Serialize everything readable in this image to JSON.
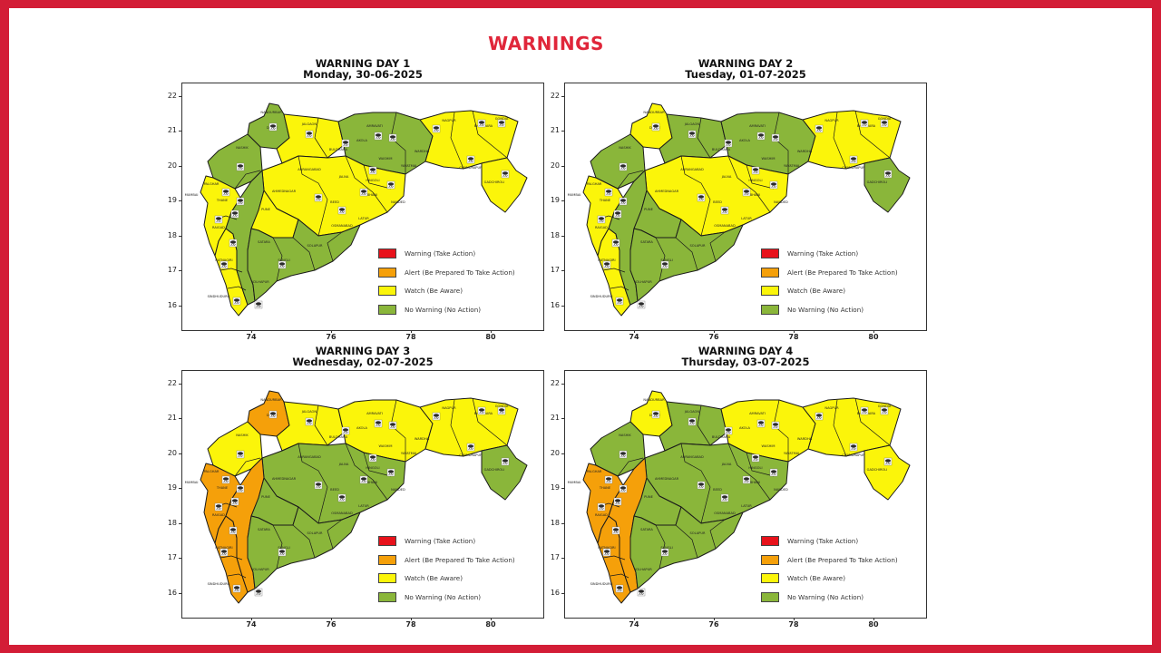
{
  "page": {
    "title": "WARNINGS"
  },
  "legend": [
    {
      "label": "Warning (Take Action)",
      "color": "#e8121b"
    },
    {
      "label": "Alert (Be Prepared To Take Action)",
      "color": "#f5a00a"
    },
    {
      "label": "Watch (Be Aware)",
      "color": "#fbf50a"
    },
    {
      "label": "No Warning (No Action)",
      "color": "#8ab63a"
    }
  ],
  "axes": {
    "y_ticks": [
      "22",
      "21",
      "20",
      "19",
      "18",
      "17",
      "16"
    ],
    "x_ticks": [
      "74",
      "76",
      "78",
      "80"
    ]
  },
  "panels": [
    {
      "title": "WARNING DAY 1",
      "date": "Monday, 30-06-2025",
      "regions": {
        "north_west": "green",
        "nashik": "green",
        "khandesh": "yellow",
        "marathwada": "yellow",
        "vidarbha_west": "green",
        "vidarbha_east": "yellow",
        "gadchiroli": "yellow",
        "coast_north": "yellow",
        "coast_south": "yellow",
        "ghats": "green",
        "south_central": "green",
        "pune": "yellow"
      }
    },
    {
      "title": "WARNING DAY 2",
      "date": "Tuesday, 01-07-2025",
      "regions": {
        "north_west": "yellow",
        "nashik": "green",
        "khandesh": "green",
        "marathwada": "yellow",
        "vidarbha_west": "green",
        "vidarbha_east": "yellow",
        "gadchiroli": "green",
        "coast_north": "yellow",
        "coast_south": "yellow",
        "ghats": "green",
        "south_central": "green",
        "pune": "green"
      }
    },
    {
      "title": "WARNING DAY 3",
      "date": "Wednesday, 02-07-2025",
      "regions": {
        "north_west": "orange",
        "nashik": "yellow",
        "khandesh": "yellow",
        "marathwada": "green",
        "vidarbha_west": "yellow",
        "vidarbha_east": "yellow",
        "gadchiroli": "green",
        "coast_north": "orange",
        "coast_south": "orange",
        "ghats": "orange",
        "south_central": "green",
        "pune": "green"
      }
    },
    {
      "title": "WARNING DAY 4",
      "date": "Thursday, 03-07-2025",
      "regions": {
        "north_west": "yellow",
        "nashik": "green",
        "khandesh": "green",
        "marathwada": "green",
        "vidarbha_west": "yellow",
        "vidarbha_east": "yellow",
        "gadchiroli": "yellow",
        "coast_north": "orange",
        "coast_south": "orange",
        "ghats": "orange",
        "south_central": "green",
        "pune": "green"
      }
    }
  ]
}
